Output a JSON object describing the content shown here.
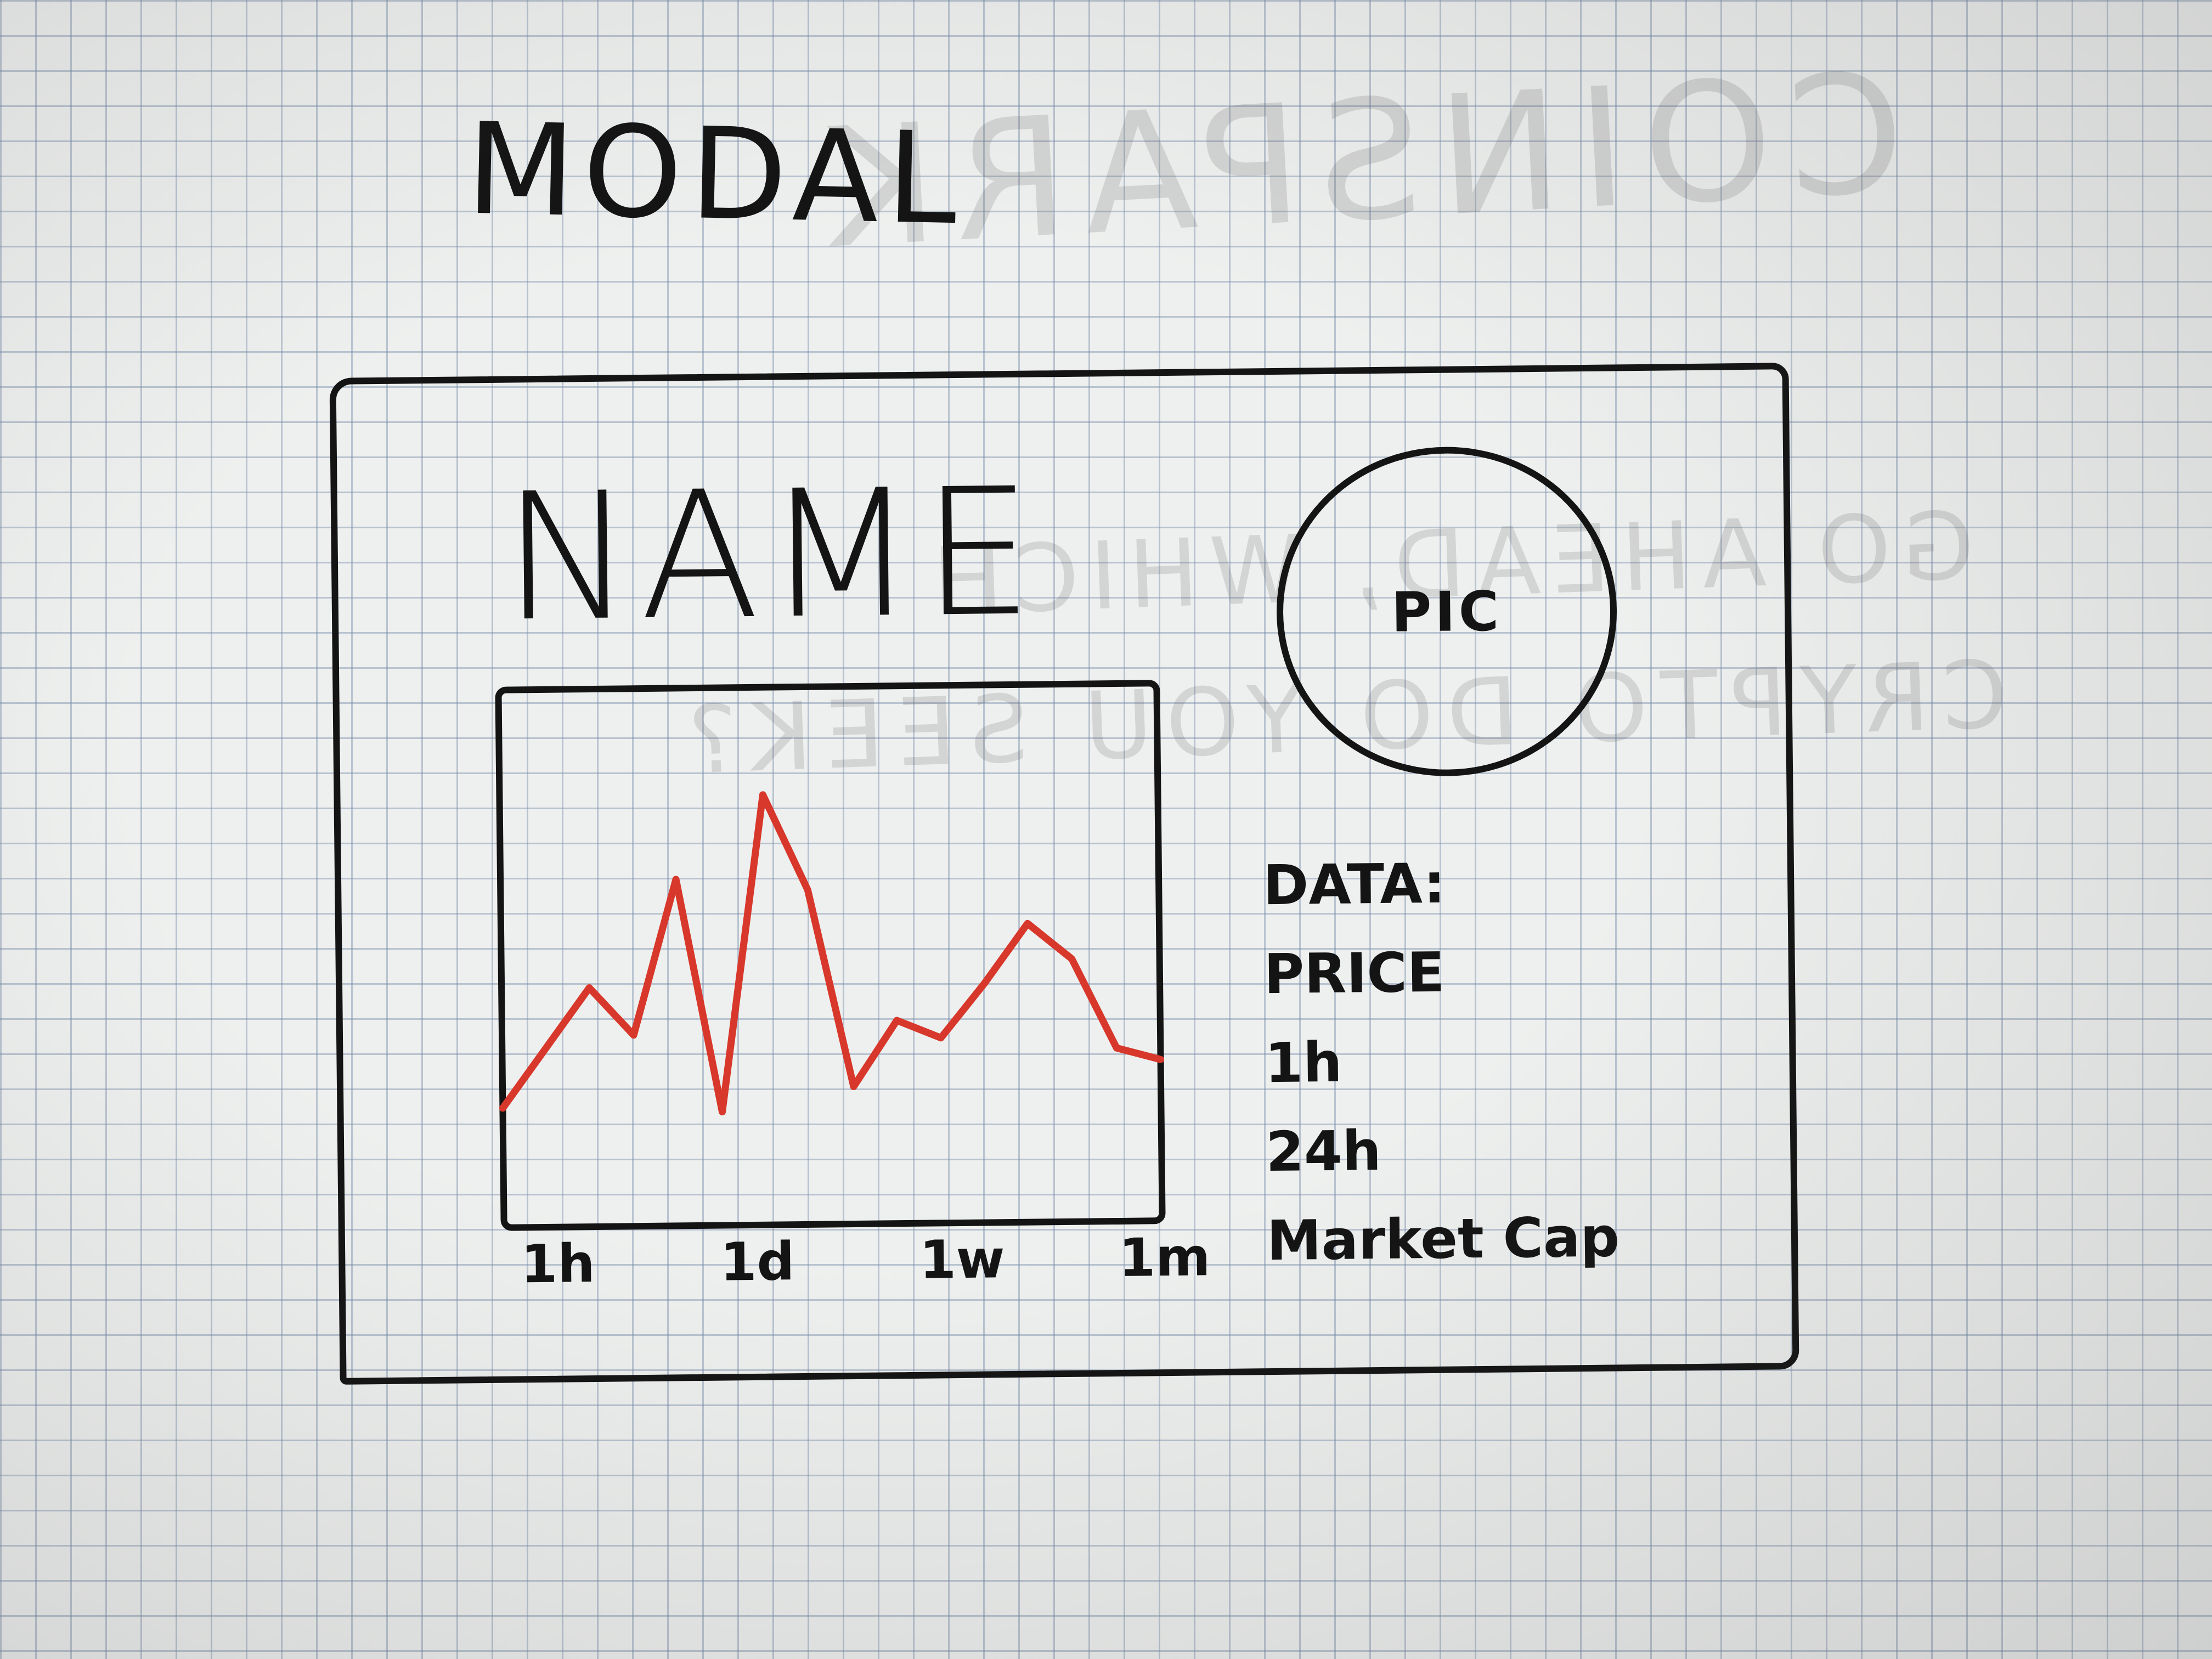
{
  "heading": "MODAL",
  "modal": {
    "name": "NAME",
    "pic_label": "PIC",
    "data_title": "DATA:",
    "data_fields": [
      "PRICE",
      "1h",
      "24h",
      "Market Cap"
    ]
  },
  "chart_data": {
    "type": "line",
    "x_tick_labels": [
      "1h",
      "1d",
      "1w",
      "1m"
    ],
    "values": [
      1,
      2,
      3,
      2.2,
      4.8,
      0.9,
      6.2,
      4.6,
      1.3,
      2.4,
      2.1,
      3.0,
      4.0,
      3.4,
      1.9,
      1.7
    ],
    "line_color": "#d7382b"
  },
  "ghost_text": {
    "line1": "COINSPARK",
    "line2": "GO AHEAD, WHICH",
    "line3": "CRYPTO DO YOU SEEK?"
  }
}
